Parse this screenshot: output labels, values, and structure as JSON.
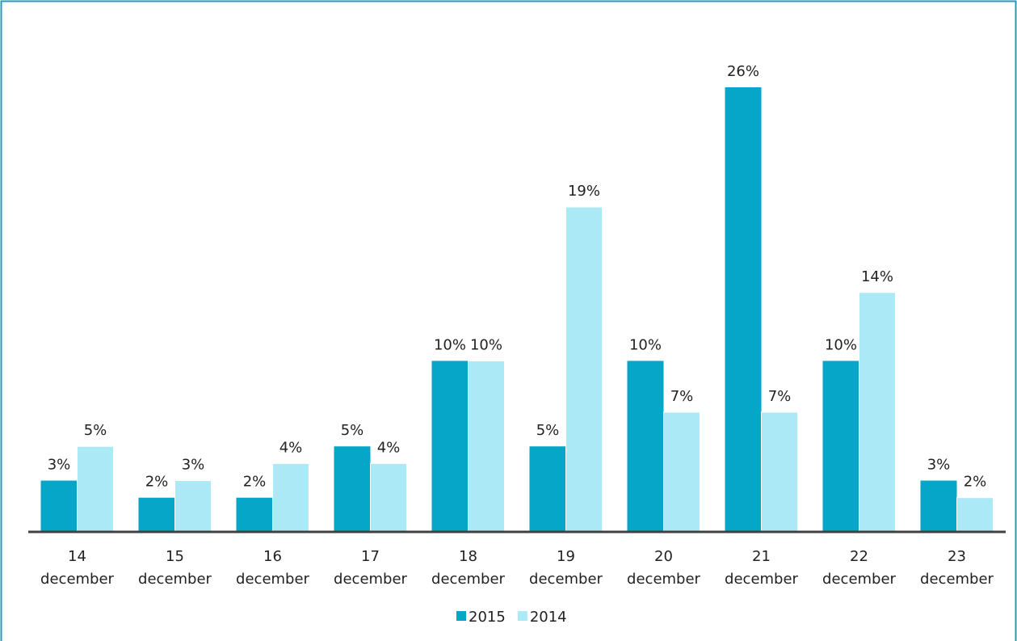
{
  "chart_data": {
    "type": "bar",
    "categories": [
      "14 december",
      "15 december",
      "16 december",
      "17 december",
      "18 december",
      "19 december",
      "20 december",
      "21 december",
      "22 december",
      "23 december"
    ],
    "series": [
      {
        "name": "2015",
        "color": "#05a6c8",
        "values": [
          3,
          2,
          2,
          5,
          10,
          5,
          10,
          26,
          10,
          3
        ],
        "value_labels": [
          "3%",
          "2%",
          "2%",
          "5%",
          "10%",
          "5%",
          "10%",
          "26%",
          "10%",
          "3%"
        ]
      },
      {
        "name": "2014",
        "color": "#abe9f6",
        "values": [
          5,
          3,
          4,
          4,
          10,
          19,
          7,
          7,
          14,
          2
        ],
        "value_labels": [
          "5%",
          "3%",
          "4%",
          "4%",
          "10%",
          "19%",
          "7%",
          "7%",
          "14%",
          "2%"
        ]
      }
    ],
    "legend": "bottom"
  }
}
